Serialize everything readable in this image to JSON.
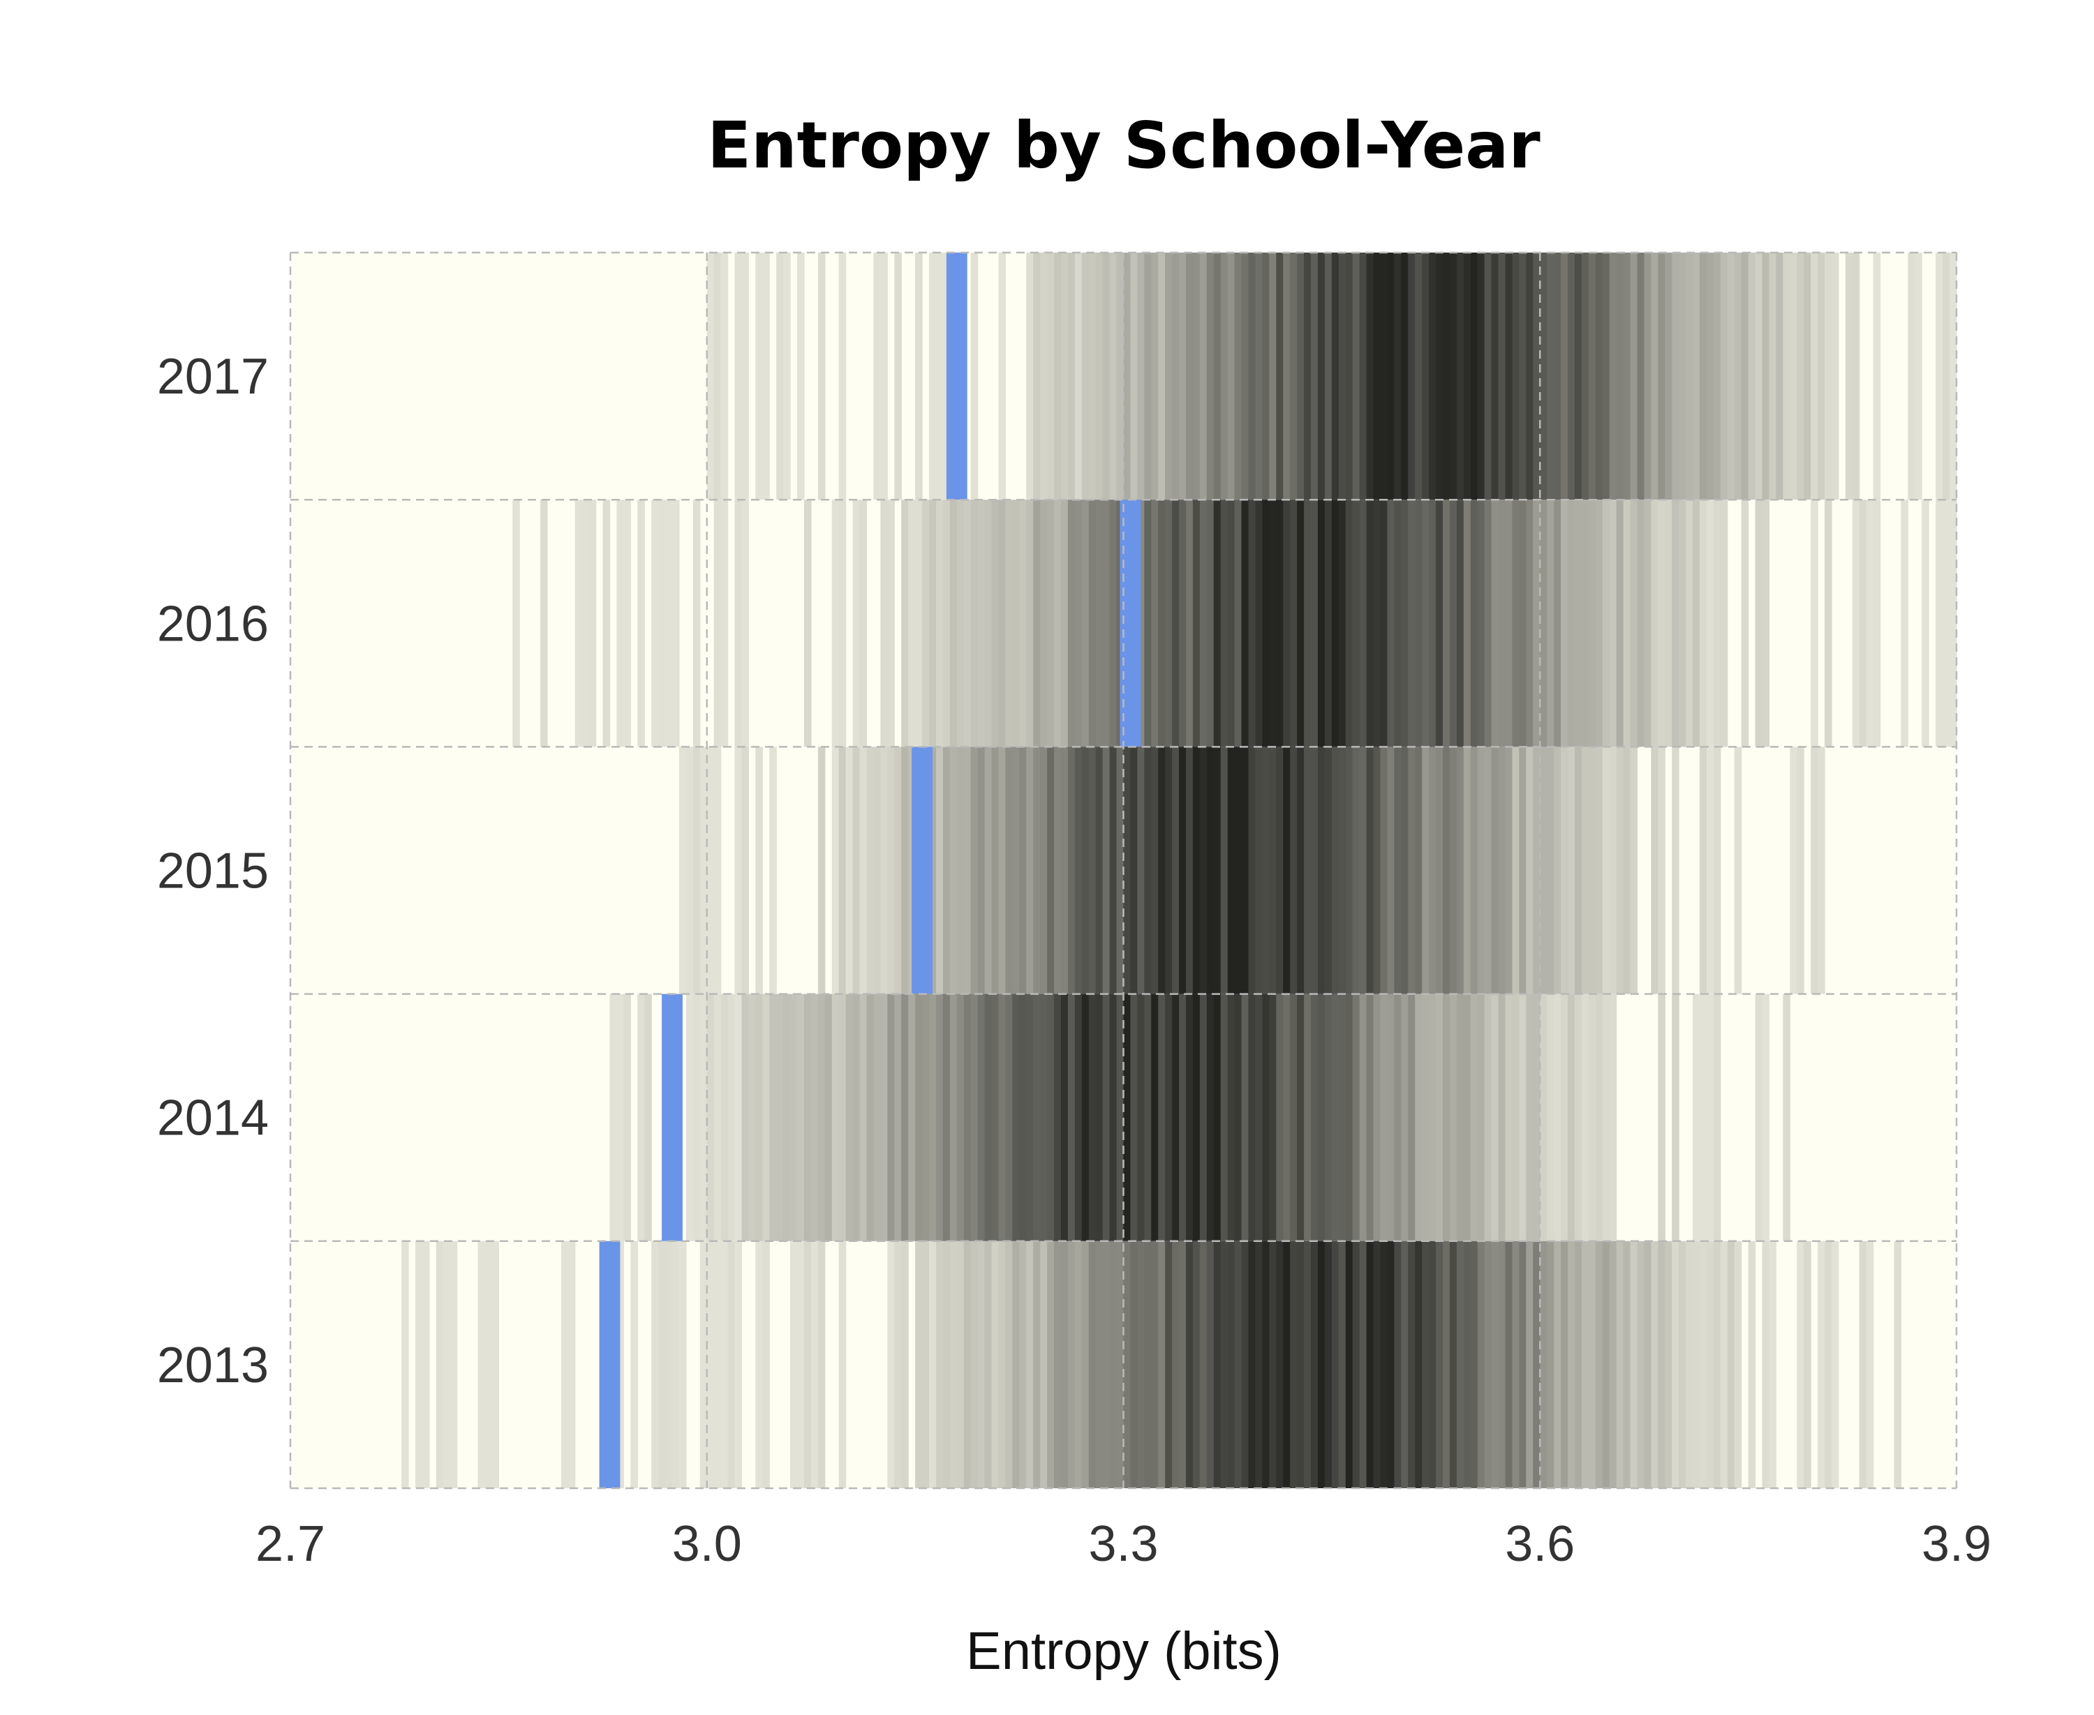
{
  "chart_data": {
    "type": "heatmap",
    "title": "Entropy by School-Year",
    "xlabel": "Entropy (bits)",
    "ylabel": "",
    "xlim": [
      2.7,
      3.9
    ],
    "x_ticks": [
      "2.7",
      "3.0",
      "3.3",
      "3.6",
      "3.9"
    ],
    "x_tick_values": [
      2.7,
      3.0,
      3.3,
      3.6,
      3.9
    ],
    "categories": [
      "2017",
      "2016",
      "2015",
      "2014",
      "2013"
    ],
    "bin_width": 0.005,
    "grid": true,
    "colors": {
      "background": "#fefff2",
      "low_density": "#e6e6da",
      "high_density": "#232320",
      "highlight": "#6a94e8",
      "grid": "#b9b9b9"
    },
    "series": [
      {
        "name": "2017",
        "min": 3.0,
        "max": 3.9,
        "peak": 3.52,
        "spread": 0.13,
        "highlight": 3.18
      },
      {
        "name": "2016",
        "min": 2.86,
        "max": 3.9,
        "peak": 3.44,
        "spread": 0.13,
        "highlight": 3.305
      },
      {
        "name": "2015",
        "min": 2.96,
        "max": 3.82,
        "peak": 3.38,
        "spread": 0.13,
        "highlight": 3.155
      },
      {
        "name": "2014",
        "min": 2.92,
        "max": 3.78,
        "peak": 3.33,
        "spread": 0.14,
        "highlight": 2.975
      },
      {
        "name": "2013",
        "min": 2.78,
        "max": 3.86,
        "peak": 3.44,
        "spread": 0.13,
        "highlight": 2.93
      }
    ]
  }
}
